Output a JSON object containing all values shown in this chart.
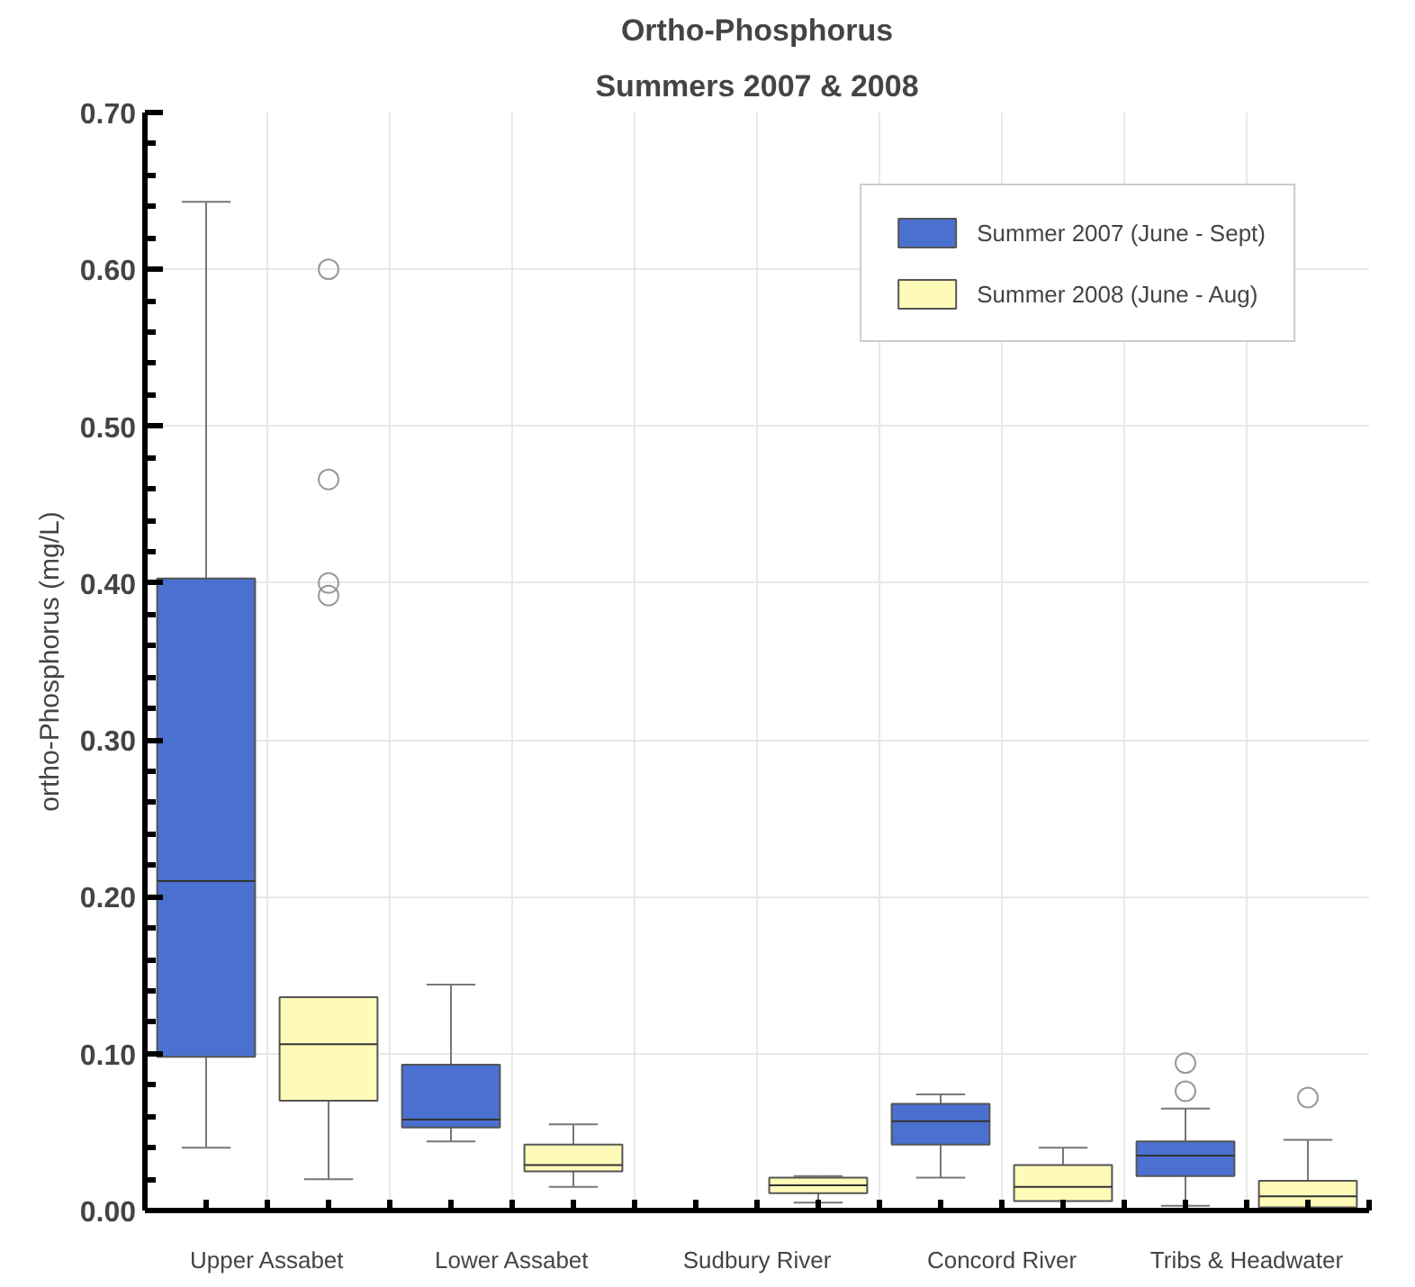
{
  "chart_data": {
    "type": "box",
    "title": "Ortho-Phosphorus",
    "subtitle": "Summers 2007 & 2008",
    "ylabel": "ortho-Phosphorus (mg/L)",
    "categories": [
      "Upper Assabet",
      "Lower Assabet",
      "Sudbury River",
      "Concord River",
      "Tribs & Headwater"
    ],
    "series": [
      {
        "name": "Summer 2007 (June - Sept)",
        "color": "#4a70d0",
        "boxes": [
          {
            "low": 0.04,
            "q1": 0.098,
            "median": 0.21,
            "q3": 0.403,
            "high": 0.643
          },
          {
            "low": 0.044,
            "q1": 0.053,
            "median": 0.058,
            "q3": 0.093,
            "high": 0.144
          },
          null,
          {
            "low": 0.021,
            "q1": 0.042,
            "median": 0.057,
            "q3": 0.068,
            "high": 0.074
          },
          {
            "low": 0.003,
            "q1": 0.022,
            "median": 0.035,
            "q3": 0.044,
            "high": 0.065,
            "outliers": [
              0.076,
              0.094
            ]
          }
        ]
      },
      {
        "name": "Summer 2008 (June - Aug)",
        "color": "#fefbb8",
        "boxes": [
          {
            "low": 0.02,
            "q1": 0.07,
            "median": 0.106,
            "q3": 0.136,
            "high": 0.136,
            "outliers": [
              0.392,
              0.4,
              0.466,
              0.6
            ]
          },
          {
            "low": 0.015,
            "q1": 0.025,
            "median": 0.029,
            "q3": 0.042,
            "high": 0.055
          },
          {
            "low": 0.005,
            "q1": 0.011,
            "median": 0.016,
            "q3": 0.021,
            "high": 0.022
          },
          {
            "low": 0.001,
            "q1": 0.006,
            "median": 0.015,
            "q3": 0.029,
            "high": 0.04
          },
          {
            "low": 0.0,
            "q1": 0.002,
            "median": 0.009,
            "q3": 0.019,
            "high": 0.045,
            "outliers": [
              0.072
            ]
          }
        ]
      }
    ],
    "ylim": [
      0,
      0.7
    ],
    "yticks": [
      {
        "value": 0,
        "label": "0.00"
      },
      {
        "value": 0.1,
        "label": "0.10"
      },
      {
        "value": 0.2,
        "label": "0.20"
      },
      {
        "value": 0.3,
        "label": "0.30"
      },
      {
        "value": 0.4,
        "label": "0.40"
      },
      {
        "value": 0.5,
        "label": "0.50"
      },
      {
        "value": 0.6,
        "label": "0.60"
      },
      {
        "value": 0.7,
        "label": "0.70"
      }
    ],
    "grid": true,
    "legend": "top right"
  }
}
